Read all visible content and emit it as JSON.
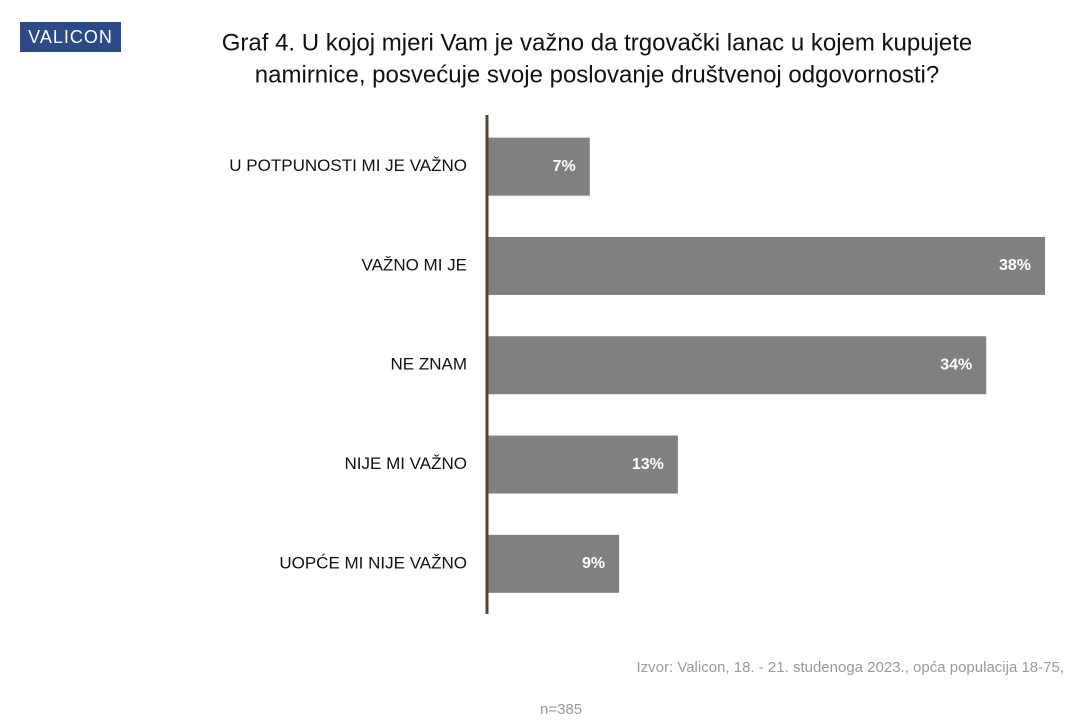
{
  "brand": "VALICON",
  "chart_data": {
    "type": "bar",
    "orientation": "horizontal",
    "title": [
      "Graf 4. U kojoj mjeri Vam je važno da trgovački lanac u kojem kupujete",
      "namirnice, posvećuje svoje poslovanje društvenoj odgovornosti?"
    ],
    "categories": [
      "U POTPUNOSTI MI JE VAŽNO",
      "VAŽNO MI JE",
      "NE ZNAM",
      "NIJE MI VAŽNO",
      "UOPĆE MI NIJE VAŽNO"
    ],
    "values": [
      7,
      38,
      34,
      13,
      9
    ],
    "value_labels": [
      "7%",
      "38%",
      "34%",
      "13%",
      "9%"
    ],
    "color": "#808080",
    "source": [
      "Izvor: Valicon, 18. - 21. studenoga 2023., opća populacija 18-75,",
      "n=385"
    ]
  }
}
